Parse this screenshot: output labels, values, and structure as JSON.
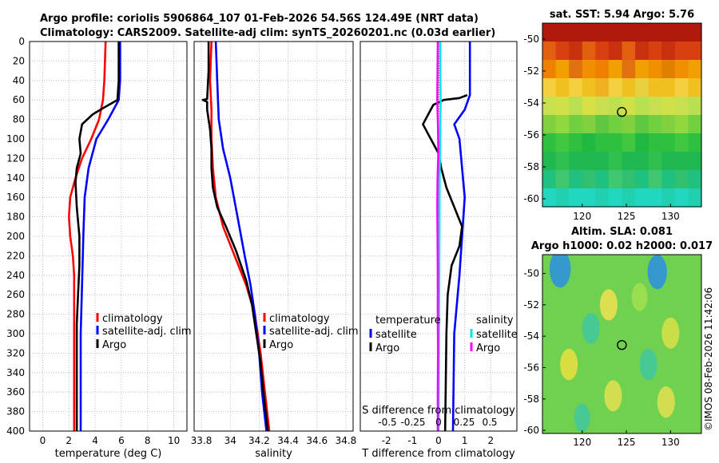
{
  "titles": {
    "line1": "Argo profile: coriolis 5906864_107 01-Feb-2026 54.56S 124.49E (NRT data)",
    "line2": "Climatology: CARS2009. Satellite-adj clim: synTS_20260201.nc (0.03d earlier)"
  },
  "credit": "©IMOS 08-Feb-2026 11:42:06",
  "colors": {
    "climatology": "#ff0000",
    "satellite": "#0000ff",
    "argo": "#000000",
    "sal_satellite": "#00e5e5",
    "sal_argo": "#ff00ff",
    "grid": "#b0b0b0"
  },
  "chart_data": [
    {
      "id": "temperature",
      "type": "line",
      "xlabel": "temperature (deg C)",
      "xlim": [
        -1,
        11
      ],
      "xticks": [
        0,
        2,
        4,
        6,
        8,
        10
      ],
      "ylim": [
        0,
        400
      ],
      "yticks": [
        0,
        20,
        40,
        60,
        80,
        100,
        120,
        140,
        160,
        180,
        200,
        220,
        240,
        260,
        280,
        300,
        320,
        340,
        360,
        380,
        400
      ],
      "legend": {
        "position": "lower-right",
        "entries": [
          "climatology",
          "satellite-adj. clim",
          "Argo"
        ]
      },
      "series": [
        {
          "name": "climatology",
          "color": "#ff0000",
          "points": [
            [
              4.8,
              0
            ],
            [
              4.7,
              40
            ],
            [
              4.6,
              60
            ],
            [
              4.3,
              80
            ],
            [
              3.7,
              100
            ],
            [
              3.0,
              120
            ],
            [
              2.5,
              140
            ],
            [
              2.1,
              160
            ],
            [
              2.0,
              180
            ],
            [
              2.1,
              200
            ],
            [
              2.3,
              220
            ],
            [
              2.4,
              240
            ],
            [
              2.4,
              260
            ],
            [
              2.4,
              300
            ],
            [
              2.4,
              400
            ]
          ]
        },
        {
          "name": "satellite-adj. clim",
          "color": "#0000ff",
          "points": [
            [
              5.9,
              0
            ],
            [
              5.9,
              40
            ],
            [
              5.8,
              60
            ],
            [
              5.0,
              80
            ],
            [
              4.1,
              100
            ],
            [
              3.5,
              130
            ],
            [
              3.2,
              160
            ],
            [
              3.1,
              200
            ],
            [
              3.0,
              250
            ],
            [
              2.9,
              300
            ],
            [
              2.9,
              400
            ]
          ]
        },
        {
          "name": "Argo",
          "color": "#000000",
          "points": [
            [
              5.8,
              0
            ],
            [
              5.8,
              40
            ],
            [
              5.7,
              60
            ],
            [
              4.4,
              70
            ],
            [
              3.8,
              75
            ],
            [
              3.0,
              85
            ],
            [
              2.8,
              100
            ],
            [
              2.9,
              115
            ],
            [
              2.6,
              130
            ],
            [
              2.5,
              145
            ],
            [
              2.6,
              170
            ],
            [
              2.8,
              200
            ],
            [
              2.8,
              230
            ],
            [
              2.7,
              260
            ],
            [
              2.6,
              290
            ],
            [
              2.6,
              320
            ],
            [
              2.6,
              400
            ]
          ]
        }
      ]
    },
    {
      "id": "salinity",
      "type": "line",
      "xlabel": "salinity",
      "xlim": [
        33.75,
        34.85
      ],
      "xticks": [
        33.8,
        34.0,
        34.2,
        34.4,
        34.6,
        34.8
      ],
      "xticklabels": [
        "33.8",
        "34",
        "34.2",
        "34.4",
        "34.6",
        "34.8"
      ],
      "ylim": [
        0,
        400
      ],
      "legend": {
        "position": "lower-right",
        "entries": [
          "climatology",
          "satellite-adj. clim",
          "Argo"
        ]
      },
      "series": [
        {
          "name": "climatology",
          "color": "#ff0000",
          "points": [
            [
              33.87,
              0
            ],
            [
              33.86,
              40
            ],
            [
              33.87,
              70
            ],
            [
              33.87,
              100
            ],
            [
              33.88,
              130
            ],
            [
              33.9,
              160
            ],
            [
              33.95,
              190
            ],
            [
              34.03,
              220
            ],
            [
              34.11,
              250
            ],
            [
              34.17,
              280
            ],
            [
              34.21,
              320
            ],
            [
              34.24,
              360
            ],
            [
              34.27,
              400
            ]
          ]
        },
        {
          "name": "satellite-adj. clim",
          "color": "#0000ff",
          "points": [
            [
              33.9,
              0
            ],
            [
              33.91,
              40
            ],
            [
              33.92,
              80
            ],
            [
              33.95,
              110
            ],
            [
              34.0,
              140
            ],
            [
              34.05,
              180
            ],
            [
              34.1,
              220
            ],
            [
              34.14,
              250
            ],
            [
              34.17,
              280
            ],
            [
              34.2,
              320
            ],
            [
              34.22,
              360
            ],
            [
              34.25,
              400
            ]
          ]
        },
        {
          "name": "Argo",
          "color": "#000000",
          "points": [
            [
              33.85,
              0
            ],
            [
              33.85,
              30
            ],
            [
              33.84,
              59
            ],
            [
              33.81,
              60
            ],
            [
              33.84,
              62
            ],
            [
              33.84,
              70
            ],
            [
              33.86,
              90
            ],
            [
              33.87,
              110
            ],
            [
              33.87,
              130
            ],
            [
              33.88,
              150
            ],
            [
              33.91,
              170
            ],
            [
              33.97,
              190
            ],
            [
              34.04,
              215
            ],
            [
              34.11,
              245
            ],
            [
              34.15,
              270
            ],
            [
              34.18,
              300
            ],
            [
              34.21,
              330
            ],
            [
              34.23,
              360
            ],
            [
              34.26,
              400
            ]
          ]
        }
      ]
    },
    {
      "id": "difference",
      "type": "line",
      "xlabel": "T difference from climatology",
      "xlim": [
        -3,
        3
      ],
      "xticks": [
        -2,
        -1,
        0,
        1,
        2
      ],
      "x2label": "S difference from climatology",
      "x2ticks": [
        -0.5,
        -0.25,
        0,
        0.25,
        0.5
      ],
      "x2ticklabels": [
        "-0.5",
        "-0.25",
        "0",
        "0.25",
        "0.5"
      ],
      "ylim": [
        0,
        400
      ],
      "legend": {
        "position": "lower",
        "headers": [
          "temperature",
          "salinity"
        ],
        "entries_t": [
          "satellite",
          "Argo"
        ],
        "entries_s": [
          "satellite",
          "Argo"
        ]
      },
      "series": [
        {
          "name": "T satellite",
          "color": "#0000ff",
          "points": [
            [
              1.2,
              0
            ],
            [
              1.2,
              30
            ],
            [
              1.2,
              55
            ],
            [
              1.0,
              70
            ],
            [
              0.6,
              85
            ],
            [
              0.8,
              100
            ],
            [
              0.9,
              130
            ],
            [
              1.0,
              160
            ],
            [
              0.9,
              200
            ],
            [
              0.8,
              240
            ],
            [
              0.6,
              300
            ],
            [
              0.55,
              400
            ]
          ]
        },
        {
          "name": "T Argo",
          "color": "#000000",
          "points": [
            [
              1.1,
              55
            ],
            [
              0.8,
              58
            ],
            [
              0.2,
              60
            ],
            [
              -0.2,
              65
            ],
            [
              -0.4,
              75
            ],
            [
              -0.6,
              85
            ],
            [
              -0.4,
              95
            ],
            [
              -0.2,
              105
            ],
            [
              0.0,
              115
            ],
            [
              0.1,
              130
            ],
            [
              0.3,
              150
            ],
            [
              0.6,
              170
            ],
            [
              0.9,
              190
            ],
            [
              0.8,
              210
            ],
            [
              0.5,
              230
            ],
            [
              0.35,
              260
            ],
            [
              0.3,
              300
            ],
            [
              0.25,
              400
            ]
          ]
        },
        {
          "name": "S satellite",
          "color": "#00e5e5",
          "points": [
            [
              0.06,
              0
            ],
            [
              0.06,
              30
            ],
            [
              0.08,
              60
            ],
            [
              0.06,
              90
            ],
            [
              0.04,
              140
            ],
            [
              0.03,
              200
            ],
            [
              0.02,
              260
            ],
            [
              0.01,
              320
            ],
            [
              0.0,
              400
            ]
          ]
        },
        {
          "name": "S Argo",
          "color": "#ff00ff",
          "points": [
            [
              -0.03,
              0
            ],
            [
              -0.04,
              30
            ],
            [
              -0.05,
              60
            ],
            [
              -0.02,
              90
            ],
            [
              -0.01,
              115
            ],
            [
              -0.04,
              140
            ],
            [
              -0.05,
              170
            ],
            [
              -0.04,
              200
            ],
            [
              -0.03,
              240
            ],
            [
              -0.03,
              280
            ],
            [
              -0.02,
              320
            ],
            [
              -0.03,
              360
            ],
            [
              -0.03,
              400
            ]
          ]
        }
      ],
      "zero_line": true
    },
    {
      "id": "sst-map",
      "type": "heatmap",
      "title": "sat. SST: 5.94 Argo: 5.76",
      "xlim": [
        115.5,
        133.5
      ],
      "xticks": [
        120,
        125,
        130
      ],
      "ylim": [
        -60.5,
        -49
      ],
      "yticks": [
        -50,
        -52,
        -54,
        -56,
        -58,
        -60
      ],
      "marker": {
        "lon": 124.49,
        "lat": -54.56
      },
      "rows": [
        [
          "#b01a0c",
          "#b01a0c",
          "#b01a0c",
          "#b01a0c",
          "#b01a0c",
          "#b01a0c",
          "#b01a0c",
          "#b01a0c",
          "#b01a0c",
          "#b01a0c",
          "#b01a0c",
          "#b01a0c"
        ],
        [
          "#e06010",
          "#d84010",
          "#c83010",
          "#e06010",
          "#d84010",
          "#c83010",
          "#e06010",
          "#c83010",
          "#d84010",
          "#c83010",
          "#d84010",
          "#d84010"
        ],
        [
          "#f08000",
          "#f0a000",
          "#e07010",
          "#f09000",
          "#f08000",
          "#f0a000",
          "#e07010",
          "#f0a000",
          "#f09000",
          "#e08000",
          "#f09000",
          "#f0a000"
        ],
        [
          "#f4d040",
          "#f0c020",
          "#f4d040",
          "#f0c020",
          "#f0b020",
          "#f4d040",
          "#f0c020",
          "#e8d040",
          "#f0c020",
          "#f0c020",
          "#f4d040",
          "#f0c020"
        ],
        [
          "#c8e050",
          "#d0e048",
          "#b8e050",
          "#d8e048",
          "#c8e050",
          "#c0e050",
          "#d0e048",
          "#b8e050",
          "#c8e050",
          "#d0e048",
          "#c8e050",
          "#b8e050"
        ],
        [
          "#80d040",
          "#90d840",
          "#70d040",
          "#80d040",
          "#60c840",
          "#70d040",
          "#80d040",
          "#60c840",
          "#70d040",
          "#80d040",
          "#90d840",
          "#70d040"
        ],
        [
          "#30c040",
          "#40c840",
          "#30c040",
          "#20b840",
          "#30c040",
          "#30c040",
          "#40c840",
          "#20b840",
          "#30c040",
          "#30c040",
          "#40c840",
          "#30c040"
        ],
        [
          "#20b850",
          "#30c050",
          "#20b850",
          "#20b850",
          "#20b850",
          "#30c050",
          "#20b850",
          "#20b850",
          "#30c050",
          "#20b850",
          "#20b850",
          "#20b850"
        ],
        [
          "#20c080",
          "#40c870",
          "#20c080",
          "#30c070",
          "#20c080",
          "#40c870",
          "#30c070",
          "#20c080",
          "#40c870",
          "#20c080",
          "#30c070",
          "#20c080"
        ],
        [
          "#20d8c0",
          "#20d0b0",
          "#20d8c0",
          "#20d8c0",
          "#20d0b0",
          "#20d8c0",
          "#20d0b0",
          "#20d8c0",
          "#20d8c0",
          "#20d0b0",
          "#20d8c0",
          "#20d0b0"
        ]
      ]
    },
    {
      "id": "sla-map",
      "type": "heatmap",
      "title": "Altim. SLA: 0.081",
      "subtitle": "Argo h1000: 0.02 h2000: 0.017",
      "xlim": [
        115.5,
        133.5
      ],
      "xticks": [
        120,
        125,
        130
      ],
      "ylim": [
        -60.2,
        -48.8
      ],
      "yticks": [
        -50,
        -52,
        -54,
        -56,
        -58,
        -60
      ],
      "marker": {
        "lon": 124.49,
        "lat": -54.56
      },
      "base_color": "#70d050",
      "blobs": [
        {
          "lon": 117.5,
          "lat": -49.7,
          "r": 1.2,
          "color": "#2a8fe0"
        },
        {
          "lon": 128.5,
          "lat": -49.9,
          "r": 1.1,
          "color": "#2a8fe0"
        },
        {
          "lon": 123.0,
          "lat": -52.0,
          "r": 1.0,
          "color": "#f0e050"
        },
        {
          "lon": 126.5,
          "lat": -51.5,
          "r": 0.9,
          "color": "#a0e050"
        },
        {
          "lon": 121.0,
          "lat": -53.5,
          "r": 1.0,
          "color": "#40c8a0"
        },
        {
          "lon": 130.0,
          "lat": -53.8,
          "r": 1.0,
          "color": "#d8e048"
        },
        {
          "lon": 118.5,
          "lat": -55.8,
          "r": 1.0,
          "color": "#e8e040"
        },
        {
          "lon": 127.5,
          "lat": -55.8,
          "r": 1.0,
          "color": "#40c8a0"
        },
        {
          "lon": 123.5,
          "lat": -57.8,
          "r": 1.0,
          "color": "#e0e050"
        },
        {
          "lon": 129.5,
          "lat": -58.2,
          "r": 1.0,
          "color": "#e0e050"
        },
        {
          "lon": 120.0,
          "lat": -59.2,
          "r": 0.9,
          "color": "#40c8a0"
        }
      ]
    }
  ]
}
